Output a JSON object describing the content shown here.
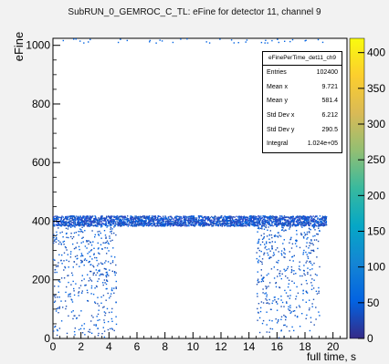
{
  "title": "SubRUN_0_GEMROC_C_TL: eFine for detector 11, channel 9",
  "stats_box": {
    "name": "eFinePerTime_det11_ch9",
    "rows": [
      {
        "label": "Entries",
        "value": "102400"
      },
      {
        "label": "Mean x",
        "value": "9.721"
      },
      {
        "label": "Mean y",
        "value": "581.4"
      },
      {
        "label": "Std Dev x",
        "value": "6.212"
      },
      {
        "label": "Std Dev y",
        "value": "290.5"
      },
      {
        "label": "Integral",
        "value": "1.024e+05"
      }
    ]
  },
  "chart_data": {
    "type": "heatmap",
    "title": "SubRUN_0_GEMROC_C_TL: eFine for detector 11, channel 9",
    "xlabel": "full time, s",
    "ylabel": "eFine",
    "xlim": [
      0,
      21
    ],
    "ylim": [
      0,
      1024
    ],
    "zlim": [
      0,
      420
    ],
    "x_ticks": [
      "0",
      "2",
      "4",
      "6",
      "8",
      "10",
      "12",
      "14",
      "16",
      "18",
      "20"
    ],
    "y_ticks": [
      "0",
      "200",
      "400",
      "600",
      "800",
      "1000"
    ],
    "z_ticks": [
      "0",
      "50",
      "100",
      "150",
      "200",
      "250",
      "300",
      "350",
      "400"
    ],
    "colormap": [
      "#352a87",
      "#0363e1",
      "#1485d4",
      "#06a7c6",
      "#38b99e",
      "#92bf73",
      "#d9ba56",
      "#fcce2e",
      "#f9fb0e"
    ],
    "regions": [
      {
        "x": [
          0,
          19.5
        ],
        "y": [
          385,
          420
        ],
        "description": "dense band"
      },
      {
        "x": [
          0,
          4.5
        ],
        "y": [
          0,
          385
        ],
        "description": "scattered hits"
      },
      {
        "x": [
          14.5,
          19.0
        ],
        "y": [
          0,
          385
        ],
        "description": "scattered hits"
      },
      {
        "x": [
          0,
          19.5
        ],
        "y": [
          1010,
          1024
        ],
        "description": "sparse top row"
      }
    ]
  }
}
